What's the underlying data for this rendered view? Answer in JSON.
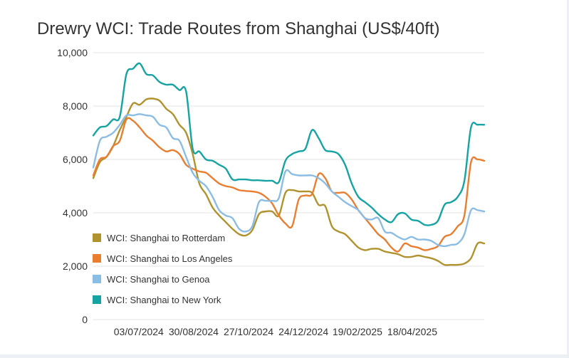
{
  "chart_data": {
    "type": "line",
    "title": "Drewry WCI: Trade Routes from Shanghai (US$/40ft)",
    "xlabel": "",
    "ylabel": "",
    "ylim": [
      0,
      10000
    ],
    "yticks": [
      0,
      2000,
      4000,
      6000,
      8000,
      10000
    ],
    "ytick_labels": [
      "0",
      "2,000",
      "4,000",
      "6,000",
      "8,000",
      "10,000"
    ],
    "xlim": [
      "2024-05-16",
      "2025-07-03"
    ],
    "xticks": [
      "2024-07-03",
      "2024-08-30",
      "2024-10-27",
      "2024-12-24",
      "2025-02-19",
      "2025-04-18"
    ],
    "xtick_labels": [
      "03/07/2024",
      "30/08/2024",
      "27/10/2024",
      "24/12/2024",
      "19/02/2025",
      "18/04/2025"
    ],
    "grid": "horizontal",
    "legend_position": "lower-left inside",
    "series": [
      {
        "name": "WCI: Shanghai to Rotterdam",
        "color": "#b0932e",
        "x": [
          "2024-05-16",
          "2024-05-23",
          "2024-05-30",
          "2024-06-06",
          "2024-06-13",
          "2024-06-20",
          "2024-06-27",
          "2024-07-04",
          "2024-07-11",
          "2024-07-18",
          "2024-07-25",
          "2024-08-01",
          "2024-08-08",
          "2024-08-15",
          "2024-08-22",
          "2024-08-29",
          "2024-09-05",
          "2024-09-12",
          "2024-09-19",
          "2024-09-26",
          "2024-10-03",
          "2024-10-10",
          "2024-10-17",
          "2024-10-24",
          "2024-10-31",
          "2024-11-07",
          "2024-11-14",
          "2024-11-21",
          "2024-11-28",
          "2024-12-05",
          "2024-12-12",
          "2024-12-19",
          "2024-12-26",
          "2025-01-02",
          "2025-01-09",
          "2025-01-16",
          "2025-01-23",
          "2025-01-30",
          "2025-02-06",
          "2025-02-13",
          "2025-02-20",
          "2025-02-27",
          "2025-03-06",
          "2025-03-13",
          "2025-03-20",
          "2025-03-27",
          "2025-04-03",
          "2025-04-10",
          "2025-04-17",
          "2025-04-24",
          "2025-05-01",
          "2025-05-08",
          "2025-05-15",
          "2025-05-22",
          "2025-05-29",
          "2025-06-05",
          "2025-06-12",
          "2025-06-19",
          "2025-06-26",
          "2025-07-03"
        ],
        "values": [
          5300,
          5900,
          6100,
          6500,
          7100,
          7600,
          8100,
          8050,
          8250,
          8280,
          8200,
          7900,
          7700,
          7300,
          7000,
          6200,
          5100,
          4700,
          4200,
          3900,
          3650,
          3400,
          3200,
          3150,
          3350,
          3950,
          4050,
          4050,
          3900,
          4750,
          4850,
          4800,
          4800,
          4750,
          4300,
          4250,
          3500,
          3300,
          3200,
          2950,
          2700,
          2600,
          2650,
          2650,
          2550,
          2500,
          2450,
          2350,
          2350,
          2400,
          2350,
          2300,
          2200,
          2050,
          2050,
          2050,
          2100,
          2300,
          2850,
          2850
        ]
      },
      {
        "name": "WCI: Shanghai to Los Angeles",
        "color": "#e97e31",
        "x": [
          "2024-05-16",
          "2024-05-23",
          "2024-05-30",
          "2024-06-06",
          "2024-06-13",
          "2024-06-20",
          "2024-06-27",
          "2024-07-04",
          "2024-07-11",
          "2024-07-18",
          "2024-07-25",
          "2024-08-01",
          "2024-08-08",
          "2024-08-15",
          "2024-08-22",
          "2024-08-29",
          "2024-09-05",
          "2024-09-12",
          "2024-09-19",
          "2024-09-26",
          "2024-10-03",
          "2024-10-10",
          "2024-10-17",
          "2024-10-24",
          "2024-10-31",
          "2024-11-07",
          "2024-11-14",
          "2024-11-21",
          "2024-11-28",
          "2024-12-05",
          "2024-12-12",
          "2024-12-19",
          "2024-12-26",
          "2025-01-02",
          "2025-01-09",
          "2025-01-16",
          "2025-01-23",
          "2025-01-30",
          "2025-02-06",
          "2025-02-13",
          "2025-02-20",
          "2025-02-27",
          "2025-03-06",
          "2025-03-13",
          "2025-03-20",
          "2025-03-27",
          "2025-04-03",
          "2025-04-10",
          "2025-04-17",
          "2025-04-24",
          "2025-05-01",
          "2025-05-08",
          "2025-05-15",
          "2025-05-22",
          "2025-05-29",
          "2025-06-05",
          "2025-06-12",
          "2025-06-19",
          "2025-06-26",
          "2025-07-03"
        ],
        "values": [
          5400,
          6000,
          6100,
          6500,
          6700,
          7500,
          7450,
          7200,
          6900,
          6700,
          6450,
          6300,
          6350,
          6200,
          5800,
          5650,
          5550,
          5500,
          5300,
          5100,
          5000,
          4950,
          4850,
          4820,
          4800,
          4750,
          4600,
          4350,
          3900,
          3600,
          3500,
          4500,
          4650,
          4700,
          5450,
          5300,
          4800,
          4750,
          4750,
          4500,
          4100,
          3800,
          3500,
          3200,
          3000,
          2700,
          2550,
          2850,
          2750,
          2700,
          2600,
          2650,
          2750,
          3100,
          3200,
          3500,
          3900,
          5900,
          6000,
          5950
        ]
      },
      {
        "name": "WCI: Shanghai to Genoa",
        "color": "#8bbde4",
        "x": [
          "2024-05-16",
          "2024-05-23",
          "2024-05-30",
          "2024-06-06",
          "2024-06-13",
          "2024-06-20",
          "2024-06-27",
          "2024-07-04",
          "2024-07-11",
          "2024-07-18",
          "2024-07-25",
          "2024-08-01",
          "2024-08-08",
          "2024-08-15",
          "2024-08-22",
          "2024-08-29",
          "2024-09-05",
          "2024-09-12",
          "2024-09-19",
          "2024-09-26",
          "2024-10-03",
          "2024-10-10",
          "2024-10-17",
          "2024-10-24",
          "2024-10-31",
          "2024-11-07",
          "2024-11-14",
          "2024-11-21",
          "2024-11-28",
          "2024-12-05",
          "2024-12-12",
          "2024-12-19",
          "2024-12-26",
          "2025-01-02",
          "2025-01-09",
          "2025-01-16",
          "2025-01-23",
          "2025-01-30",
          "2025-02-06",
          "2025-02-13",
          "2025-02-20",
          "2025-02-27",
          "2025-03-06",
          "2025-03-13",
          "2025-03-20",
          "2025-03-27",
          "2025-04-03",
          "2025-04-10",
          "2025-04-17",
          "2025-04-24",
          "2025-05-01",
          "2025-05-08",
          "2025-05-15",
          "2025-05-22",
          "2025-05-29",
          "2025-06-05",
          "2025-06-12",
          "2025-06-19",
          "2025-06-26",
          "2025-07-03"
        ],
        "values": [
          5700,
          6700,
          6850,
          7000,
          7300,
          7650,
          7650,
          7700,
          7650,
          7600,
          7300,
          7200,
          6800,
          6700,
          6100,
          5500,
          5200,
          5000,
          4600,
          4100,
          3900,
          3800,
          3400,
          3300,
          3500,
          4400,
          4450,
          4450,
          4550,
          5550,
          5450,
          5400,
          5400,
          5400,
          5300,
          5100,
          4800,
          4600,
          4400,
          4250,
          4100,
          3800,
          3750,
          3800,
          3300,
          3250,
          3100,
          3000,
          3100,
          3000,
          3000,
          2950,
          2800,
          2750,
          2800,
          2850,
          3200,
          4100,
          4100,
          4050
        ]
      },
      {
        "name": "WCI: Shanghai to New York",
        "color": "#16a3a3",
        "x": [
          "2024-05-16",
          "2024-05-23",
          "2024-05-30",
          "2024-06-06",
          "2024-06-13",
          "2024-06-20",
          "2024-06-27",
          "2024-07-04",
          "2024-07-11",
          "2024-07-18",
          "2024-07-25",
          "2024-08-01",
          "2024-08-08",
          "2024-08-15",
          "2024-08-22",
          "2024-08-29",
          "2024-09-05",
          "2024-09-12",
          "2024-09-19",
          "2024-09-26",
          "2024-10-03",
          "2024-10-10",
          "2024-10-17",
          "2024-10-24",
          "2024-10-31",
          "2024-11-07",
          "2024-11-14",
          "2024-11-21",
          "2024-11-28",
          "2024-12-05",
          "2024-12-12",
          "2024-12-19",
          "2024-12-26",
          "2025-01-02",
          "2025-01-09",
          "2025-01-16",
          "2025-01-23",
          "2025-01-30",
          "2025-02-06",
          "2025-02-13",
          "2025-02-20",
          "2025-02-27",
          "2025-03-06",
          "2025-03-13",
          "2025-03-20",
          "2025-03-27",
          "2025-04-03",
          "2025-04-10",
          "2025-04-17",
          "2025-04-24",
          "2025-05-01",
          "2025-05-08",
          "2025-05-15",
          "2025-05-22",
          "2025-05-29",
          "2025-06-05",
          "2025-06-12",
          "2025-06-19",
          "2025-06-26",
          "2025-07-03"
        ],
        "values": [
          6900,
          7200,
          7250,
          7500,
          7600,
          9200,
          9400,
          9600,
          9200,
          9150,
          8900,
          8800,
          8800,
          8600,
          8550,
          6400,
          6300,
          6000,
          5950,
          5800,
          5650,
          5250,
          5250,
          5250,
          5220,
          5220,
          5200,
          5200,
          5150,
          5950,
          6200,
          6300,
          6400,
          7100,
          6800,
          6350,
          6300,
          6200,
          5800,
          5100,
          4600,
          4400,
          4200,
          3950,
          3750,
          3650,
          3950,
          3980,
          3750,
          3700,
          3550,
          3550,
          3700,
          4300,
          4400,
          4600,
          5200,
          7200,
          7300,
          7300
        ]
      }
    ]
  }
}
